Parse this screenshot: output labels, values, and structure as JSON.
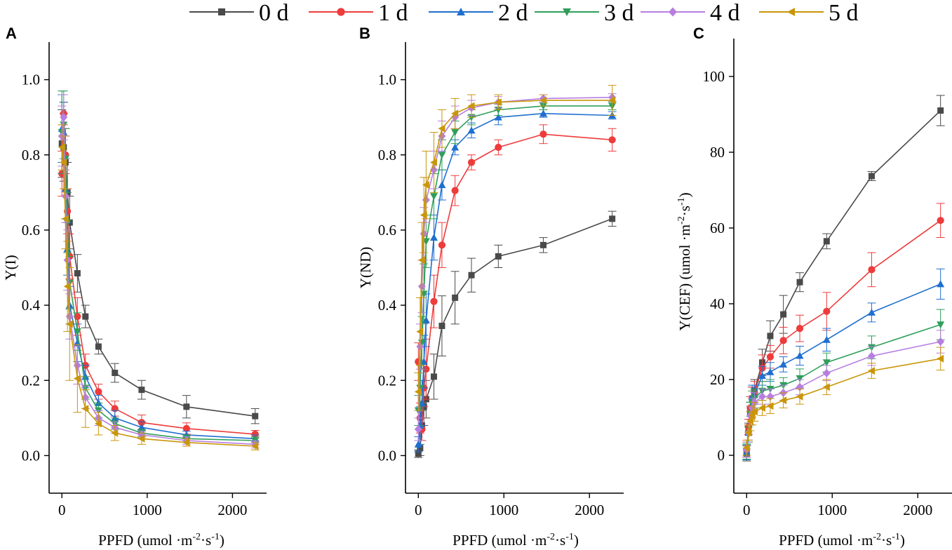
{
  "figure": {
    "legend": [
      {
        "name": "0 d",
        "color": "#4a4a4a",
        "marker": "square"
      },
      {
        "name": "1 d",
        "color": "#ee3b3b",
        "marker": "circle"
      },
      {
        "name": "2 d",
        "color": "#1f6fcf",
        "marker": "triangle-up"
      },
      {
        "name": "3 d",
        "color": "#2f9e5b",
        "marker": "triangle-down"
      },
      {
        "name": "4 d",
        "color": "#b77ee0",
        "marker": "diamond"
      },
      {
        "name": "5 d",
        "color": "#c9960a",
        "marker": "triangle-left"
      }
    ]
  },
  "chart_data": [
    {
      "panel": "A",
      "type": "line",
      "title": "",
      "xlabel": "PPFD (umol",
      "ylabel": "Y(I)",
      "xlim": [
        -150,
        2400
      ],
      "ylim": [
        -0.1,
        1.1
      ],
      "xticks": [
        0,
        1000,
        2000
      ],
      "xtick_labels": [
        "0",
        "1000",
        "2000"
      ],
      "yticks": [
        0.0,
        0.2,
        0.4,
        0.6,
        0.8,
        1.0
      ],
      "ytick_labels": [
        "0.0",
        "0.2",
        "0.4",
        "0.6",
        "0.8",
        "1.0"
      ],
      "x": [
        0,
        21,
        42,
        65,
        91,
        182,
        276,
        429,
        621,
        935,
        1461,
        2266
      ],
      "series": [
        {
          "name": "0 d",
          "values": [
            0.83,
            0.82,
            0.78,
            0.7,
            0.62,
            0.485,
            0.37,
            0.29,
            0.22,
            0.175,
            0.13,
            0.105
          ],
          "errors": [
            0.09,
            0.09,
            0.09,
            0.08,
            0.07,
            0.05,
            0.03,
            0.02,
            0.025,
            0.025,
            0.03,
            0.02
          ]
        },
        {
          "name": "1 d",
          "values": [
            0.75,
            0.91,
            0.8,
            0.65,
            0.53,
            0.37,
            0.24,
            0.17,
            0.125,
            0.088,
            0.072,
            0.057
          ],
          "errors": [
            0.06,
            0.03,
            0.05,
            0.06,
            0.06,
            0.05,
            0.03,
            0.02,
            0.02,
            0.02,
            0.015,
            0.01
          ]
        },
        {
          "name": "2 d",
          "values": [
            0.87,
            0.86,
            0.71,
            0.55,
            0.4,
            0.3,
            0.21,
            0.14,
            0.1,
            0.075,
            0.055,
            0.045
          ],
          "errors": [
            0.09,
            0.08,
            0.08,
            0.07,
            0.05,
            0.05,
            0.03,
            0.02,
            0.02,
            0.015,
            0.01,
            0.01
          ]
        },
        {
          "name": "3 d",
          "values": [
            0.86,
            0.88,
            0.79,
            0.62,
            0.46,
            0.33,
            0.18,
            0.12,
            0.085,
            0.06,
            0.045,
            0.04
          ],
          "errors": [
            0.11,
            0.09,
            0.08,
            0.08,
            0.07,
            0.05,
            0.03,
            0.02,
            0.015,
            0.01,
            0.01,
            0.01
          ]
        },
        {
          "name": "4 d",
          "values": [
            0.85,
            0.9,
            0.69,
            0.52,
            0.37,
            0.24,
            0.155,
            0.1,
            0.075,
            0.055,
            0.04,
            0.03
          ],
          "errors": [
            0.08,
            0.06,
            0.07,
            0.08,
            0.06,
            0.05,
            0.03,
            0.02,
            0.015,
            0.01,
            0.01,
            0.01
          ]
        },
        {
          "name": "5 d",
          "values": [
            0.82,
            0.78,
            0.63,
            0.45,
            0.35,
            0.205,
            0.125,
            0.085,
            0.06,
            0.045,
            0.035,
            0.025
          ],
          "errors": [
            0.06,
            0.07,
            0.08,
            0.12,
            0.15,
            0.09,
            0.05,
            0.03,
            0.02,
            0.015,
            0.01,
            0.01
          ]
        }
      ]
    },
    {
      "panel": "B",
      "type": "line",
      "title": "",
      "xlabel": "PPFD (umol",
      "ylabel": "Y(ND)",
      "xlim": [
        -150,
        2400
      ],
      "ylim": [
        -0.1,
        1.1
      ],
      "xticks": [
        0,
        1000,
        2000
      ],
      "xtick_labels": [
        "0",
        "1000",
        "2000"
      ],
      "yticks": [
        0.0,
        0.2,
        0.4,
        0.6,
        0.8,
        1.0
      ],
      "ytick_labels": [
        "0.0",
        "0.2",
        "0.4",
        "0.6",
        "0.8",
        "1.0"
      ],
      "x": [
        0,
        21,
        42,
        65,
        91,
        182,
        276,
        429,
        621,
        935,
        1461,
        2266
      ],
      "series": [
        {
          "name": "0 d",
          "values": [
            0.005,
            0.02,
            0.08,
            0.13,
            0.15,
            0.21,
            0.345,
            0.42,
            0.48,
            0.53,
            0.56,
            0.63
          ],
          "errors": [
            0.01,
            0.02,
            0.04,
            0.05,
            0.05,
            0.06,
            0.08,
            0.07,
            0.045,
            0.03,
            0.02,
            0.02
          ]
        },
        {
          "name": "1 d",
          "values": [
            0.25,
            0.1,
            0.07,
            0.18,
            0.23,
            0.41,
            0.56,
            0.705,
            0.78,
            0.82,
            0.855,
            0.84
          ],
          "errors": [
            0.05,
            0.04,
            0.03,
            0.05,
            0.08,
            0.07,
            0.06,
            0.04,
            0.02,
            0.02,
            0.025,
            0.03
          ]
        },
        {
          "name": "2 d",
          "values": [
            0.03,
            0.08,
            0.14,
            0.25,
            0.36,
            0.58,
            0.72,
            0.82,
            0.865,
            0.9,
            0.91,
            0.905
          ],
          "errors": [
            0.02,
            0.05,
            0.06,
            0.07,
            0.07,
            0.06,
            0.04,
            0.02,
            0.02,
            0.02,
            0.01,
            0.01
          ]
        },
        {
          "name": "3 d",
          "values": [
            0.12,
            0.18,
            0.3,
            0.43,
            0.57,
            0.69,
            0.8,
            0.86,
            0.9,
            0.92,
            0.93,
            0.93
          ],
          "errors": [
            0.04,
            0.06,
            0.07,
            0.08,
            0.07,
            0.06,
            0.04,
            0.03,
            0.02,
            0.015,
            0.01,
            0.01
          ]
        },
        {
          "name": "4 d",
          "values": [
            0.07,
            0.29,
            0.45,
            0.59,
            0.68,
            0.76,
            0.85,
            0.9,
            0.925,
            0.94,
            0.95,
            0.953
          ],
          "errors": [
            0.03,
            0.06,
            0.07,
            0.07,
            0.06,
            0.05,
            0.04,
            0.03,
            0.02,
            0.015,
            0.01,
            0.01
          ]
        },
        {
          "name": "5 d",
          "values": [
            0.17,
            0.33,
            0.52,
            0.64,
            0.72,
            0.78,
            0.87,
            0.91,
            0.93,
            0.94,
            0.945,
            0.945
          ],
          "errors": [
            0.05,
            0.09,
            0.1,
            0.1,
            0.09,
            0.08,
            0.05,
            0.04,
            0.03,
            0.02,
            0.015,
            0.04
          ]
        }
      ]
    },
    {
      "panel": "C",
      "type": "line",
      "title": "",
      "xlabel": "PPFD (umol",
      "ylabel": "Y(CEF)  (umol",
      "xlim": [
        -150,
        2400
      ],
      "ylim": [
        -10,
        110
      ],
      "xticks": [
        0,
        1000,
        2000
      ],
      "xtick_labels": [
        "0",
        "1000",
        "2000"
      ],
      "yticks": [
        0,
        20,
        40,
        60,
        80,
        100
      ],
      "ytick_labels": [
        "0",
        "20",
        "40",
        "60",
        "80",
        "100"
      ],
      "x": [
        0,
        21,
        42,
        65,
        91,
        182,
        276,
        429,
        621,
        935,
        1461,
        2266
      ],
      "series": [
        {
          "name": "0 d",
          "values": [
            0.5,
            6,
            11,
            15,
            17,
            24.5,
            31.5,
            37.2,
            45.7,
            56.5,
            73.7,
            91
          ],
          "errors": [
            2,
            2.5,
            3,
            3,
            3,
            3.5,
            4,
            5,
            2.5,
            2,
            1.2,
            4
          ]
        },
        {
          "name": "1 d",
          "values": [
            1.5,
            7.5,
            12.5,
            15,
            16.5,
            23,
            26,
            30.3,
            33.5,
            38,
            49,
            62
          ],
          "errors": [
            2,
            2,
            3,
            3,
            3,
            3.5,
            3,
            3.5,
            3.5,
            5,
            4.5,
            4.5
          ]
        },
        {
          "name": "2 d",
          "values": [
            0.8,
            6,
            11,
            15.5,
            16,
            21,
            22,
            24,
            26.3,
            30.5,
            37.7,
            45.2
          ],
          "errors": [
            2,
            2,
            3,
            3,
            2.5,
            2.5,
            2.5,
            2,
            2.5,
            3,
            2.5,
            4
          ]
        },
        {
          "name": "3 d",
          "values": [
            1,
            5.5,
            11,
            14,
            15,
            17,
            17.5,
            18.5,
            20.3,
            24.5,
            28.5,
            34.5
          ],
          "errors": [
            2,
            2,
            3,
            3,
            2.5,
            2.5,
            2.5,
            2,
            2.5,
            2.5,
            3,
            4
          ]
        },
        {
          "name": "4 d",
          "values": [
            1.5,
            6,
            10.5,
            12.5,
            14,
            15.5,
            15.5,
            16.5,
            18,
            21.7,
            26.2,
            30
          ],
          "errors": [
            2,
            2,
            2.5,
            2.5,
            2.5,
            2,
            2,
            2,
            2,
            2,
            2.5,
            3
          ]
        },
        {
          "name": "5 d",
          "values": [
            2,
            6,
            9,
            10.5,
            11.5,
            12.5,
            13,
            14.5,
            15.5,
            18,
            22.3,
            25.5
          ],
          "errors": [
            2,
            2,
            2.5,
            2.5,
            2.5,
            2,
            2,
            2,
            2,
            2,
            2,
            3
          ]
        }
      ]
    }
  ]
}
